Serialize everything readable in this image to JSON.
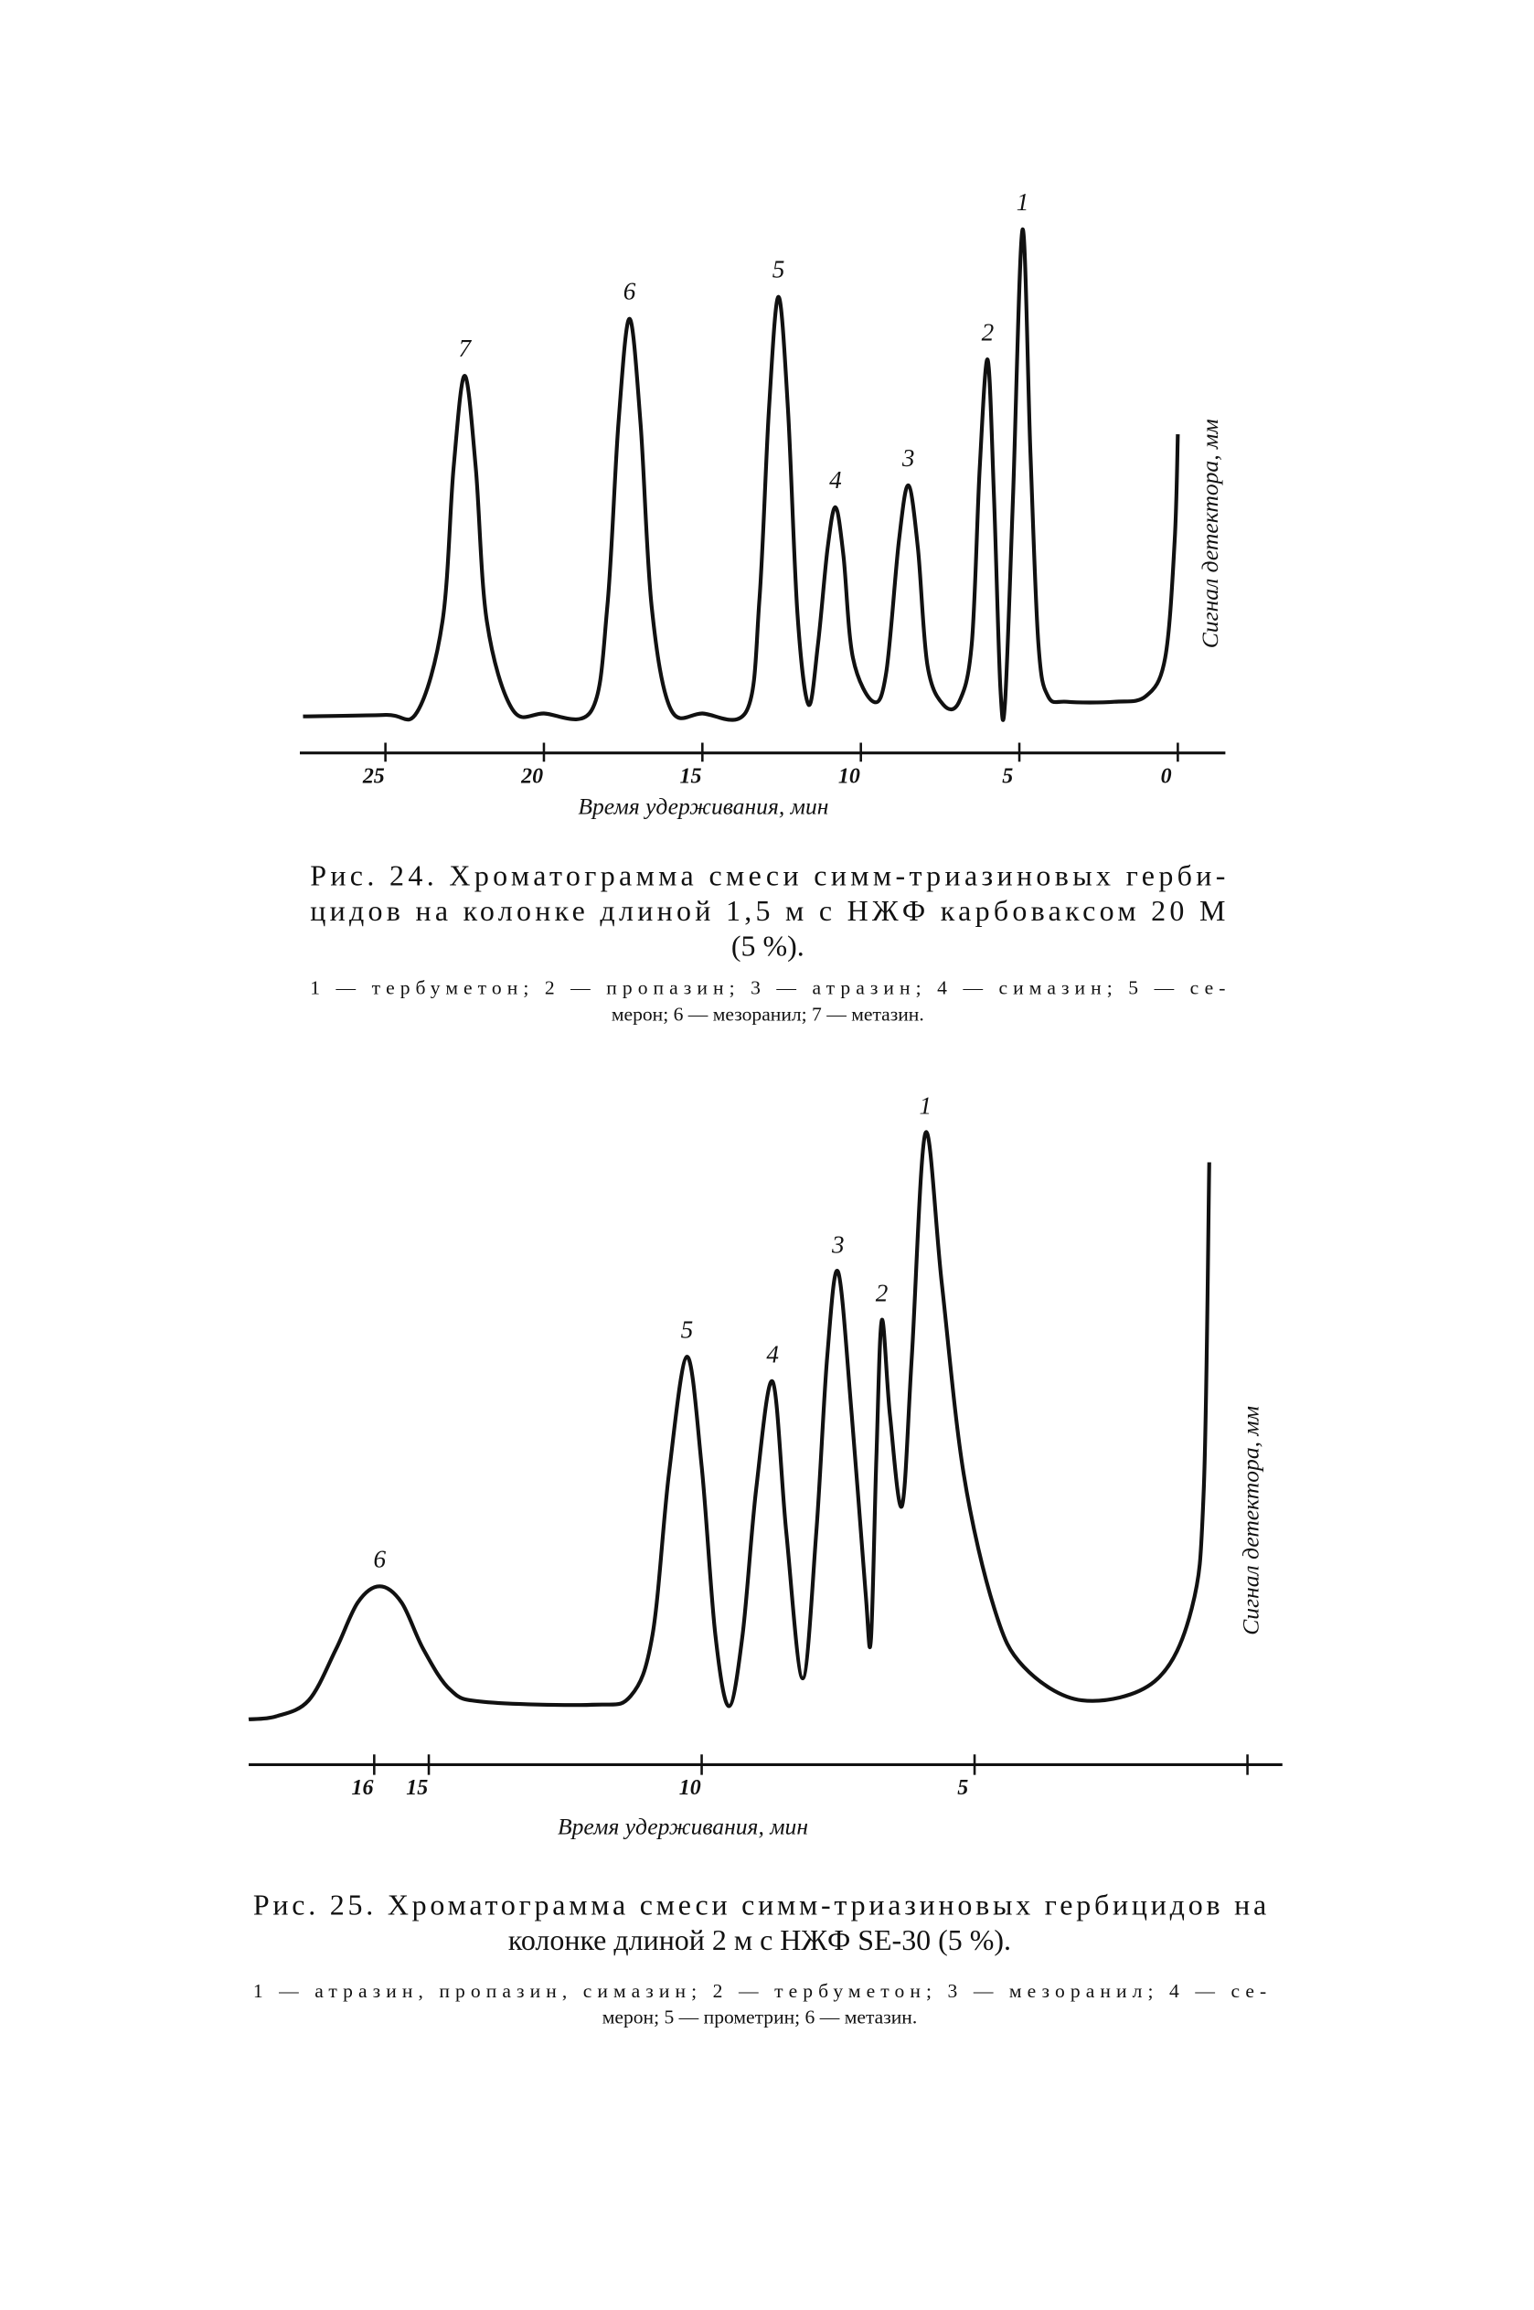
{
  "chart_data": [
    {
      "type": "line",
      "color": "#111111",
      "xlabel": "Время удерживания, мин",
      "ylabel": "Сигнал детектора, мм",
      "xlim": [
        27.7,
        -1.5
      ],
      "ylim": [
        0,
        350
      ],
      "xticks": [
        25,
        20,
        15,
        10,
        5,
        0
      ],
      "x": [
        27.6,
        25,
        24,
        23.2,
        22.85,
        22.5,
        22.15,
        21.8,
        21.0,
        20,
        18.5,
        18.0,
        17.65,
        17.3,
        16.95,
        16.6,
        16.0,
        15,
        13.6,
        13.2,
        12.9,
        12.6,
        12.3,
        12.0,
        11.65,
        11.35,
        11.05,
        10.8,
        10.55,
        10.25,
        9.6,
        9.2,
        8.8,
        8.5,
        8.2,
        7.9,
        7.4,
        6.9,
        6.5,
        6.25,
        6.0,
        5.8,
        5.6,
        5.45,
        5.2,
        4.9,
        4.65,
        4.4,
        4.1,
        3.5,
        2,
        1,
        0.4,
        0.1,
        0
      ],
      "values": [
        0,
        1,
        3,
        65,
        170,
        233,
        170,
        65,
        5,
        2,
        4,
        75,
        200,
        272,
        200,
        75,
        5,
        2,
        4,
        80,
        210,
        287,
        210,
        70,
        8,
        50,
        115,
        143,
        110,
        40,
        10,
        30,
        120,
        158,
        115,
        35,
        8,
        10,
        50,
        170,
        244,
        150,
        20,
        10,
        150,
        333,
        180,
        50,
        14,
        10,
        10,
        14,
        40,
        120,
        193
      ],
      "annotations": [
        {
          "text": "1",
          "x": 4.9,
          "y": 333
        },
        {
          "text": "2",
          "x": 6.0,
          "y": 244
        },
        {
          "text": "3",
          "x": 8.5,
          "y": 158
        },
        {
          "text": "4",
          "x": 10.8,
          "y": 143
        },
        {
          "text": "5",
          "x": 12.6,
          "y": 287
        },
        {
          "text": "6",
          "x": 17.3,
          "y": 272
        },
        {
          "text": "7",
          "x": 22.5,
          "y": 233
        }
      ],
      "caption": [
        "Рис. 24. Хроматограмма смеси симм-триазиновых герби-",
        "цидов на колонке длиной 1,5 м с НЖФ карбоваксом 20 М",
        "(5 %)."
      ],
      "legend": [
        "1 — тербуметон; 2 — пропазин; 3 — атразин; 4 — симазин; 5 — се-",
        "мерон; 6 — мезоранил; 7 — метазин."
      ]
    },
    {
      "type": "line",
      "color": "#111111",
      "xlabel": "Время удерживания, мин",
      "ylabel": "Сигнал детектора, мм",
      "xlim": [
        18.3,
        -0.64
      ],
      "ylim": [
        0,
        420
      ],
      "xticks": [
        16,
        15,
        10,
        5,
        {
          "value": 0,
          "label": null
        }
      ],
      "x": [
        18.3,
        17.8,
        17.2,
        16.7,
        16.3,
        15.9,
        15.5,
        15.1,
        14.6,
        14.0,
        12,
        11.3,
        10.9,
        10.6,
        10.27,
        10.0,
        9.75,
        9.5,
        9.25,
        9.0,
        8.7,
        8.45,
        8.15,
        7.9,
        7.7,
        7.5,
        7.25,
        7.0,
        6.9,
        6.8,
        6.7,
        6.55,
        6.33,
        6.15,
        5.9,
        5.6,
        5.2,
        4.64,
        4.1,
        3.03,
        1.7,
        1.02,
        0.8,
        0.7
      ],
      "values": [
        2,
        4,
        15,
        50,
        82,
        93,
        82,
        50,
        22,
        14,
        12,
        18,
        60,
        170,
        250,
        175,
        60,
        11,
        60,
        160,
        233,
        130,
        30,
        130,
        250,
        308,
        210,
        90,
        56,
        180,
        275,
        210,
        148,
        250,
        403,
        300,
        170,
        78,
        38,
        15,
        28,
        78,
        160,
        383
      ],
      "annotations": [
        {
          "text": "1",
          "x": 5.9,
          "y": 403
        },
        {
          "text": "2",
          "x": 6.7,
          "y": 275
        },
        {
          "text": "3",
          "x": 7.5,
          "y": 308
        },
        {
          "text": "4",
          "x": 8.7,
          "y": 233
        },
        {
          "text": "5",
          "x": 10.27,
          "y": 250
        },
        {
          "text": "6",
          "x": 15.9,
          "y": 93
        }
      ],
      "caption": [
        "Рис. 25. Хроматограмма смеси симм-триазиновых гербицидов на",
        "колонке длиной 2 м с НЖФ SE-30 (5 %)."
      ],
      "legend": [
        "1 — атразин, пропазин, симазин; 2 — тербуметон; 3 — мезоранил; 4 — се-",
        "мерон; 5 — прометрин; 6 — метазин."
      ]
    }
  ]
}
